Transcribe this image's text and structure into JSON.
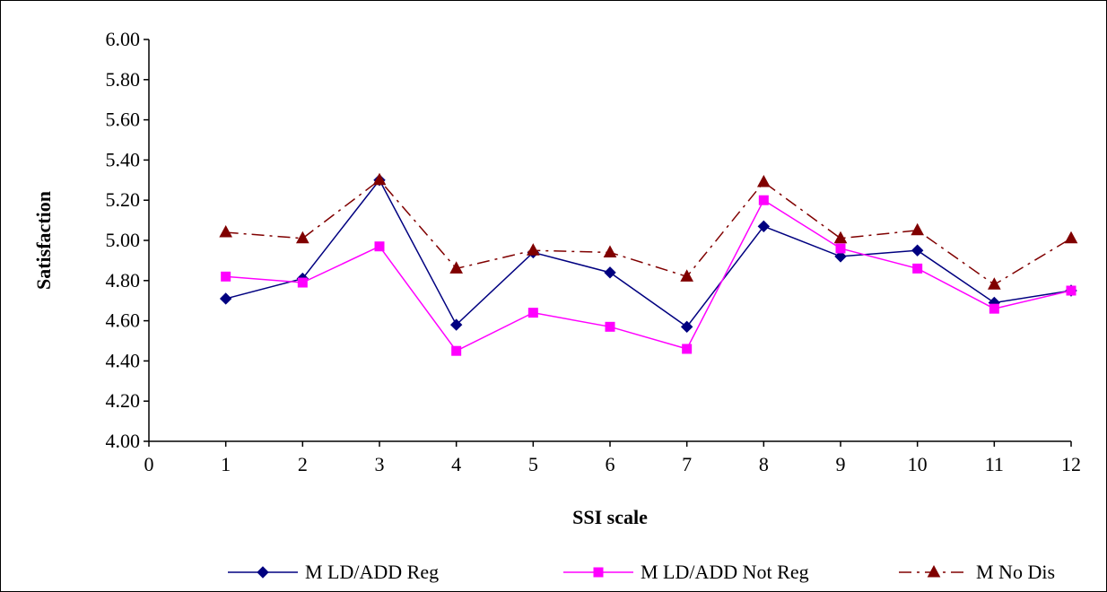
{
  "chart_data": {
    "type": "line",
    "title": "",
    "xlabel": "SSI scale",
    "ylabel": "Satisfaction",
    "xlim": [
      0,
      12
    ],
    "ylim": [
      4.0,
      6.0
    ],
    "x_ticks": [
      "0",
      "1",
      "2",
      "3",
      "4",
      "5",
      "6",
      "7",
      "8",
      "9",
      "10",
      "11",
      "12"
    ],
    "y_ticks": [
      "4.00",
      "4.20",
      "4.40",
      "4.60",
      "4.80",
      "5.00",
      "5.20",
      "5.40",
      "5.60",
      "5.80",
      "6.00"
    ],
    "grid": false,
    "legend_position": "bottom",
    "x": [
      1,
      2,
      3,
      4,
      5,
      6,
      7,
      8,
      9,
      10,
      11,
      12
    ],
    "series": [
      {
        "name": "M LD/ADD Reg",
        "color": "#000080",
        "marker": "diamond",
        "line_style": "solid",
        "values": [
          4.71,
          4.81,
          5.3,
          4.58,
          4.94,
          4.84,
          4.57,
          5.07,
          4.92,
          4.95,
          4.69,
          4.75
        ]
      },
      {
        "name": "M LD/ADD Not Reg",
        "color": "#FF00FF",
        "marker": "square",
        "line_style": "solid",
        "values": [
          4.82,
          4.79,
          4.97,
          4.45,
          4.64,
          4.57,
          4.46,
          5.2,
          4.96,
          4.86,
          4.66,
          4.75
        ]
      },
      {
        "name": "M  No Dis",
        "color": "#800000",
        "marker": "triangle",
        "line_style": "dashdot",
        "values": [
          5.04,
          5.01,
          5.3,
          4.86,
          4.95,
          4.94,
          4.82,
          5.29,
          5.01,
          5.05,
          4.78,
          5.01
        ]
      }
    ]
  }
}
